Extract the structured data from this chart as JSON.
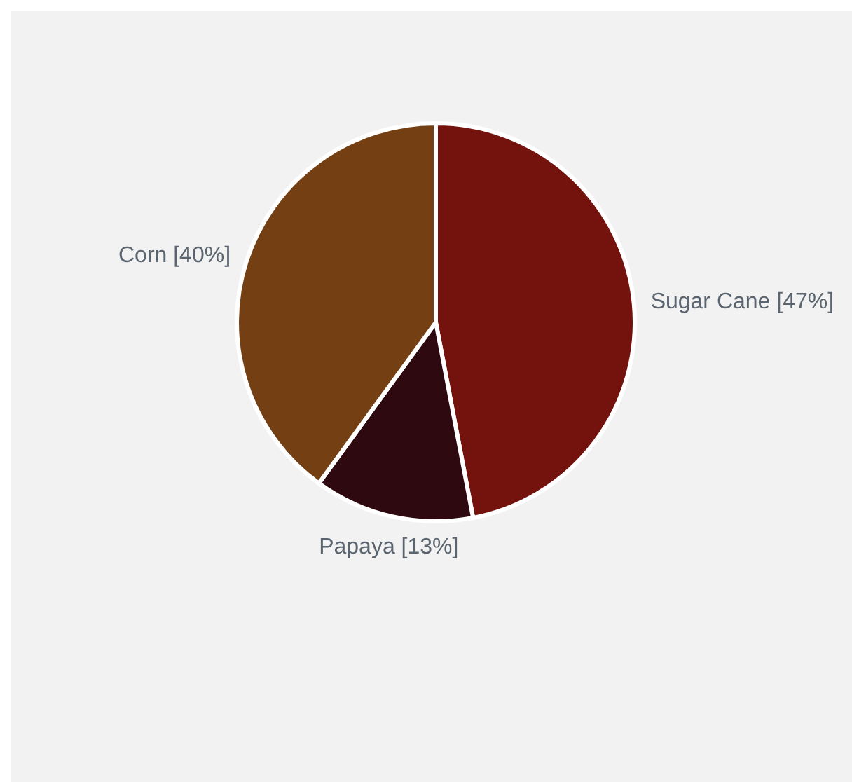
{
  "chart_data": {
    "type": "pie",
    "categories": [
      "Sugar Cane",
      "Papaya",
      "Corn"
    ],
    "values": [
      47,
      13,
      40
    ],
    "colors": [
      "#74130d",
      "#2e0a10",
      "#744013"
    ],
    "value_labels": [
      "[47%]",
      "[13%]",
      "[40%]"
    ]
  }
}
